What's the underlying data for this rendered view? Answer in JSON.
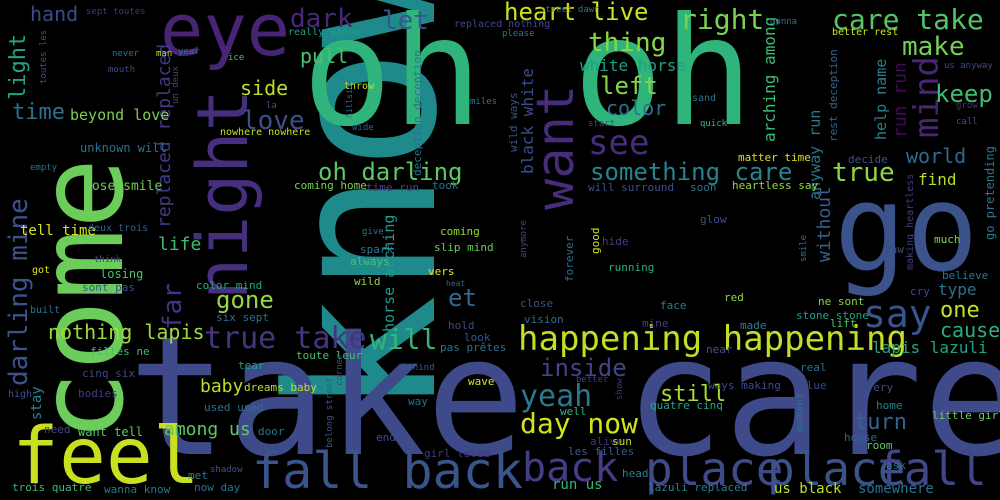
{
  "background": "#000000",
  "colormap": "viridis",
  "words": [
    {
      "text": "know",
      "color": "#1f8a8c"
    },
    {
      "text": "take care",
      "color": "#3e4a89"
    },
    {
      "text": "oh oh",
      "color": "#2fb47c"
    },
    {
      "text": "come",
      "color": "#6ccd5a"
    },
    {
      "text": "go",
      "color": "#3b528b"
    },
    {
      "text": "night",
      "color": "#46307e"
    },
    {
      "text": "eye",
      "color": "#482475"
    },
    {
      "text": "feel",
      "color": "#c8e020"
    },
    {
      "text": "fall back",
      "color": "#3a548c"
    },
    {
      "text": "back",
      "color": "#433e85"
    },
    {
      "text": "place",
      "color": "#3e4a89"
    },
    {
      "text": "place",
      "color": "#3b528b"
    },
    {
      "text": "fall",
      "color": "#404688"
    },
    {
      "text": "want",
      "color": "#472c7a"
    },
    {
      "text": "happening happening",
      "color": "#c2df23"
    },
    {
      "text": "say",
      "color": "#39558c"
    },
    {
      "text": "heart live",
      "color": "#cde11d"
    },
    {
      "text": "right",
      "color": "#7ad151"
    },
    {
      "text": "care take",
      "color": "#54c568"
    },
    {
      "text": "make",
      "color": "#73d056"
    },
    {
      "text": "thing",
      "color": "#8bd646"
    },
    {
      "text": "dark",
      "color": "#482878"
    },
    {
      "text": "let",
      "color": "#3a548c"
    },
    {
      "text": "hand",
      "color": "#3e4989"
    },
    {
      "text": "light",
      "color": "#20a386"
    },
    {
      "text": "time",
      "color": "#2d708e"
    },
    {
      "text": "side",
      "color": "#bddf26"
    },
    {
      "text": "love",
      "color": "#3d4e8a"
    },
    {
      "text": "pull",
      "color": "#4ac16d"
    },
    {
      "text": "left",
      "color": "#86d549"
    },
    {
      "text": "see",
      "color": "#472d7b"
    },
    {
      "text": "color",
      "color": "#2e6f8e"
    },
    {
      "text": "oh darling",
      "color": "#5ec962"
    },
    {
      "text": "something care",
      "color": "#25848e"
    },
    {
      "text": "true",
      "color": "#90d743"
    },
    {
      "text": "mind",
      "color": "#482575"
    },
    {
      "text": "keep",
      "color": "#3fbc73"
    },
    {
      "text": "world",
      "color": "#306a8e"
    },
    {
      "text": "find",
      "color": "#b5de2b"
    },
    {
      "text": "one",
      "color": "#c5e021"
    },
    {
      "text": "cause",
      "color": "#29af7f"
    },
    {
      "text": "type",
      "color": "#2c728e"
    },
    {
      "text": "lapis lazuli",
      "color": "#20a486"
    },
    {
      "text": "gone",
      "color": "#95d840"
    },
    {
      "text": "far",
      "color": "#46337f"
    },
    {
      "text": "et",
      "color": "#31688e"
    },
    {
      "text": "true take",
      "color": "#463480"
    },
    {
      "text": "will",
      "color": "#31b57b"
    },
    {
      "text": "darling mine",
      "color": "#3b528b"
    },
    {
      "text": "nothing lapis",
      "color": "#9fda3a"
    },
    {
      "text": "inside",
      "color": "#414487"
    },
    {
      "text": "yeah",
      "color": "#2a778e"
    },
    {
      "text": "day now",
      "color": "#d2e21b"
    },
    {
      "text": "still",
      "color": "#a8db34"
    },
    {
      "text": "turn",
      "color": "#32648e"
    },
    {
      "text": "baby",
      "color": "#b8de29"
    },
    {
      "text": "among us",
      "color": "#5ec962"
    },
    {
      "text": "life",
      "color": "#3fbc73"
    },
    {
      "text": "replaced replaced",
      "color": "#443983"
    },
    {
      "text": "beyond love",
      "color": "#7ad151"
    },
    {
      "text": "unknown will",
      "color": "#2d718e"
    },
    {
      "text": "lose smile",
      "color": "#6ece58"
    },
    {
      "text": "tell time",
      "color": "#dde318"
    },
    {
      "text": "sont pas",
      "color": "#3b528b"
    },
    {
      "text": "losing",
      "color": "#4ac16d"
    },
    {
      "text": "white horse",
      "color": "#1fa088"
    },
    {
      "text": "black white",
      "color": "#3d4d8a"
    },
    {
      "text": "horse arching",
      "color": "#1e9b8a"
    },
    {
      "text": "arching among",
      "color": "#3fbc73"
    },
    {
      "text": "anyway run",
      "color": "#2a768e"
    },
    {
      "text": "without",
      "color": "#34608d"
    },
    {
      "text": "help name",
      "color": "#26828e"
    },
    {
      "text": "run run",
      "color": "#46085c"
    },
    {
      "text": "rest deception",
      "color": "#33638d"
    },
    {
      "text": "wild ways",
      "color": "#39568c"
    },
    {
      "text": "deception deception",
      "color": "#2c728e"
    },
    {
      "text": "go pretending",
      "color": "#2a788e"
    },
    {
      "text": "making heartless",
      "color": "#433d84"
    },
    {
      "text": "matter time",
      "color": "#dde318"
    },
    {
      "text": "heartless say",
      "color": "#93d741"
    },
    {
      "text": "coming home",
      "color": "#77d153"
    },
    {
      "text": "time run",
      "color": "#3f4788"
    },
    {
      "text": "took",
      "color": "#2e6f8e"
    },
    {
      "text": "will surround",
      "color": "#3b528b"
    },
    {
      "text": "soon",
      "color": "#2c718e"
    },
    {
      "text": "glow",
      "color": "#3d4d8a"
    },
    {
      "text": "decide",
      "color": "#39568c"
    },
    {
      "text": "coming",
      "color": "#9bd93c"
    },
    {
      "text": "slip mind",
      "color": "#67cc5c"
    },
    {
      "text": "spark",
      "color": "#2a768e"
    },
    {
      "text": "always",
      "color": "#4ac16d"
    },
    {
      "text": "wild",
      "color": "#90d743"
    },
    {
      "text": "vers",
      "color": "#e5e419"
    },
    {
      "text": "color mind",
      "color": "#22a884"
    },
    {
      "text": "six sept",
      "color": "#2c728e"
    },
    {
      "text": "close",
      "color": "#3b528b"
    },
    {
      "text": "vision",
      "color": "#2d718e"
    },
    {
      "text": "face",
      "color": "#287d8e"
    },
    {
      "text": "red",
      "color": "#8bd646"
    },
    {
      "text": "ne sont",
      "color": "#84d44b"
    },
    {
      "text": "stone stone",
      "color": "#1fa088"
    },
    {
      "text": "lift",
      "color": "#4ac16d"
    },
    {
      "text": "hold",
      "color": "#3e4989"
    },
    {
      "text": "look",
      "color": "#3b528b"
    },
    {
      "text": "pas prêtes",
      "color": "#2c728e"
    },
    {
      "text": "mine",
      "color": "#414487"
    },
    {
      "text": "made",
      "color": "#26828e"
    },
    {
      "text": "near",
      "color": "#3b528b"
    },
    {
      "text": "real",
      "color": "#2d708e"
    },
    {
      "text": "filles ne",
      "color": "#42be71"
    },
    {
      "text": "toute leur",
      "color": "#4ac16d"
    },
    {
      "text": "tear",
      "color": "#1fa088"
    },
    {
      "text": "cinq six",
      "color": "#3e4a89"
    },
    {
      "text": "dreams baby",
      "color": "#c2df23"
    },
    {
      "text": "used used",
      "color": "#2d708e"
    },
    {
      "text": "bodies",
      "color": "#453781"
    },
    {
      "text": "high",
      "color": "#3b528b"
    },
    {
      "text": "stay",
      "color": "#25848e"
    },
    {
      "text": "want tell",
      "color": "#5ec962"
    },
    {
      "text": "need",
      "color": "#3f4788"
    },
    {
      "text": "trois quatre",
      "color": "#3fbc73"
    },
    {
      "text": "wanna know",
      "color": "#2a788e"
    },
    {
      "text": "met",
      "color": "#26828e"
    },
    {
      "text": "now day",
      "color": "#2c728e"
    },
    {
      "text": "shadow",
      "color": "#3b528b"
    },
    {
      "text": "door",
      "color": "#2a768e"
    },
    {
      "text": "end",
      "color": "#3d4d8a"
    },
    {
      "text": "way",
      "color": "#2c718e"
    },
    {
      "text": "well",
      "color": "#31b57b"
    },
    {
      "text": "alive",
      "color": "#46337f"
    },
    {
      "text": "sun",
      "color": "#b8de29"
    },
    {
      "text": "les filles",
      "color": "#34608d"
    },
    {
      "text": "girl loved",
      "color": "#443983"
    },
    {
      "text": "head",
      "color": "#287d8e"
    },
    {
      "text": "lazuli replaced",
      "color": "#25848e"
    },
    {
      "text": "run us",
      "color": "#35b779"
    },
    {
      "text": "us black",
      "color": "#c2df23"
    },
    {
      "text": "somewhere",
      "color": "#2c728e"
    },
    {
      "text": "quatre cinq",
      "color": "#22a884"
    },
    {
      "text": "ways making",
      "color": "#3e4989"
    },
    {
      "text": "every",
      "color": "#3e4a89"
    },
    {
      "text": "home",
      "color": "#26828e"
    },
    {
      "text": "room",
      "color": "#5ec962"
    },
    {
      "text": "house",
      "color": "#31688e"
    },
    {
      "text": "ask",
      "color": "#2a768e"
    },
    {
      "text": "little girl",
      "color": "#6ece58"
    },
    {
      "text": "wave",
      "color": "#d8e219"
    },
    {
      "text": "better",
      "color": "#433e85"
    },
    {
      "text": "show",
      "color": "#46337f"
    },
    {
      "text": "moment",
      "color": "#2c728e"
    },
    {
      "text": "blue",
      "color": "#3e4989"
    },
    {
      "text": "smile",
      "color": "#2d708e"
    },
    {
      "text": "saw",
      "color": "#3b528b"
    },
    {
      "text": "believe",
      "color": "#2a768e"
    },
    {
      "text": "cry",
      "color": "#3f4788"
    },
    {
      "text": "much",
      "color": "#84d44b"
    },
    {
      "text": "forever",
      "color": "#2c718e"
    },
    {
      "text": "good",
      "color": "#d2e21b"
    },
    {
      "text": "hide",
      "color": "#433d84"
    },
    {
      "text": "running",
      "color": "#29af7f"
    },
    {
      "text": "anymore",
      "color": "#3e4a89"
    },
    {
      "text": "corner",
      "color": "#3f4788"
    },
    {
      "text": "behind",
      "color": "#33638d"
    },
    {
      "text": "belong street",
      "color": "#39568c"
    },
    {
      "text": "sont pas",
      "color": "#3b528b"
    },
    {
      "text": "deux trois",
      "color": "#34608d"
    },
    {
      "text": "built",
      "color": "#2a788e"
    },
    {
      "text": "got",
      "color": "#e2e418"
    },
    {
      "text": "think",
      "color": "#3e4989"
    },
    {
      "text": "empty",
      "color": "#2d708e"
    },
    {
      "text": "mouth",
      "color": "#3e4989"
    },
    {
      "text": "never",
      "color": "#2d708e"
    },
    {
      "text": "man",
      "color": "#b5de2b"
    },
    {
      "text": "year",
      "color": "#2a768e"
    },
    {
      "text": "ice",
      "color": "#42be71"
    },
    {
      "text": "un deux",
      "color": "#3f4788"
    },
    {
      "text": "toutes les",
      "color": "#3b528b"
    },
    {
      "text": "sept toutes",
      "color": "#443983"
    },
    {
      "text": "la",
      "color": "#3e4a89"
    },
    {
      "text": "nowhere nowhere",
      "color": "#c5e021"
    },
    {
      "text": "really wanna",
      "color": "#1fa088"
    },
    {
      "text": "throw",
      "color": "#c2df23"
    },
    {
      "text": "hillside",
      "color": "#2c728e"
    },
    {
      "text": "wide",
      "color": "#33638d"
    },
    {
      "text": "replaced nothing",
      "color": "#3e4989"
    },
    {
      "text": "please",
      "color": "#2d708e"
    },
    {
      "text": "street dawn",
      "color": "#2c718e"
    },
    {
      "text": "miles",
      "color": "#2a768e"
    },
    {
      "text": "start",
      "color": "#3e4989"
    },
    {
      "text": "sand",
      "color": "#2d708e"
    },
    {
      "text": "quick",
      "color": "#35b779"
    },
    {
      "text": "better rest",
      "color": "#d2e21b"
    },
    {
      "text": "gonna",
      "color": "#2c728e"
    },
    {
      "text": "us anyway",
      "color": "#3e4a89"
    },
    {
      "text": "grow",
      "color": "#46337f"
    },
    {
      "text": "call",
      "color": "#3b528b"
    },
    {
      "text": "saved",
      "color": "#2a768e"
    },
    {
      "text": "hidden",
      "color": "#3f4788"
    },
    {
      "text": "give",
      "color": "#2c728e"
    },
    {
      "text": "heat",
      "color": "#33638d"
    }
  ]
}
